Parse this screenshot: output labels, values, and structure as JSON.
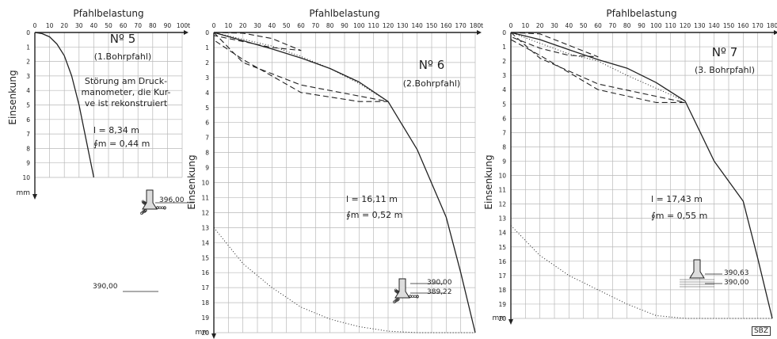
{
  "chart_data": [
    {
      "type": "line",
      "title": "Pfahlbelastung",
      "xlabel": "Pfahlbelastung",
      "ylabel": "Einsenkung",
      "x_unit": "t",
      "y_unit": "mm",
      "xlim": [
        0,
        100
      ],
      "ylim": [
        0,
        10
      ],
      "x_ticks": [
        0,
        10,
        20,
        30,
        40,
        50,
        60,
        70,
        80,
        90,
        100
      ],
      "y_ticks": [
        0,
        1,
        2,
        3,
        4,
        5,
        6,
        7,
        8,
        9,
        10
      ],
      "series": [
        {
          "style": "solid",
          "x": [
            0,
            5,
            10,
            15,
            20,
            25,
            30,
            35,
            40
          ],
          "y": [
            0,
            0.08,
            0.3,
            0.8,
            1.6,
            3.0,
            5.0,
            7.5,
            10.0
          ]
        }
      ],
      "annotations": {
        "pile_no": "Nº 5",
        "pile_type": "(1.Bohrpfahl)",
        "note": [
          "Störung am Druck-",
          "manometer, die Kur-",
          "ve ist rekonstruiert"
        ],
        "length": "l = 8,34 m",
        "diameter": "∮m = 0,44 m",
        "level_top": "396,00",
        "level_bottom": "390,00"
      }
    },
    {
      "type": "line",
      "title": "Pfahlbelastung",
      "xlabel": "Pfahlbelastung",
      "ylabel": "Einsenkung",
      "x_unit": "t",
      "y_unit": "mm",
      "xlim": [
        0,
        180
      ],
      "ylim": [
        0,
        20
      ],
      "x_ticks": [
        0,
        10,
        20,
        30,
        40,
        50,
        60,
        70,
        80,
        90,
        100,
        110,
        120,
        130,
        140,
        150,
        160,
        170,
        180
      ],
      "y_ticks": [
        0,
        1,
        2,
        3,
        4,
        5,
        6,
        7,
        8,
        9,
        10,
        11,
        12,
        13,
        14,
        15,
        16,
        17,
        18,
        19,
        20
      ],
      "series": [
        {
          "style": "solid",
          "x": [
            0,
            20,
            40,
            60,
            80,
            100,
            120,
            140,
            160,
            170,
            180
          ],
          "y": [
            0,
            0.55,
            1.1,
            1.7,
            2.4,
            3.3,
            4.6,
            7.8,
            12.3,
            16.0,
            20.0
          ]
        },
        {
          "style": "dashed",
          "x": [
            0,
            20,
            40,
            60,
            40,
            20,
            0
          ],
          "y": [
            0,
            0.05,
            0.4,
            1.2,
            1.0,
            0.6,
            0.2
          ]
        },
        {
          "style": "dashed",
          "x": [
            0,
            20,
            60,
            120,
            100,
            60,
            20,
            0
          ],
          "y": [
            0,
            2.0,
            3.5,
            4.6,
            4.6,
            4.0,
            1.8,
            0.5
          ]
        },
        {
          "style": "dotted",
          "x": [
            0,
            40,
            60,
            80,
            100,
            120
          ],
          "y": [
            0,
            0.9,
            1.6,
            2.4,
            3.4,
            4.6
          ]
        },
        {
          "style": "dotted",
          "x": [
            0,
            20,
            40,
            60,
            80,
            100,
            120,
            140,
            160,
            180
          ],
          "y": [
            13.0,
            15.4,
            17.0,
            18.3,
            19.1,
            19.6,
            19.9,
            20.0,
            20.0,
            20.0
          ]
        }
      ],
      "annotations": {
        "pile_no": "Nº 6",
        "pile_type": "(2.Bohrpfahl)",
        "length": "l = 16,11 m",
        "diameter": "∮m = 0,52 m",
        "level_top": "390,00",
        "level_bottom": "389,22"
      }
    },
    {
      "type": "line",
      "title": "Pfahlbelastung",
      "xlabel": "Pfahlbelastung",
      "ylabel": "Einsenkung",
      "x_unit": "t",
      "y_unit": "mm",
      "xlim": [
        0,
        180
      ],
      "ylim": [
        0,
        20
      ],
      "x_ticks": [
        0,
        10,
        20,
        30,
        40,
        50,
        60,
        70,
        80,
        90,
        100,
        110,
        120,
        130,
        140,
        150,
        160,
        170,
        180
      ],
      "y_ticks": [
        0,
        1,
        2,
        3,
        4,
        5,
        6,
        7,
        8,
        9,
        10,
        11,
        12,
        13,
        14,
        15,
        16,
        17,
        18,
        19,
        20
      ],
      "series": [
        {
          "style": "solid",
          "x": [
            0,
            20,
            40,
            60,
            80,
            100,
            120,
            140,
            160,
            170,
            180
          ],
          "y": [
            0,
            0.5,
            1.2,
            1.9,
            2.5,
            3.5,
            4.8,
            9.0,
            11.8,
            15.8,
            20.0
          ]
        },
        {
          "style": "dashed",
          "x": [
            0,
            20,
            40,
            60,
            40,
            20,
            0
          ],
          "y": [
            0,
            0.1,
            0.9,
            1.7,
            1.6,
            1.1,
            0.3
          ]
        },
        {
          "style": "dashed",
          "x": [
            0,
            20,
            60,
            120,
            100,
            60,
            20,
            0
          ],
          "y": [
            0,
            1.8,
            3.6,
            4.9,
            4.9,
            4.0,
            1.6,
            0.5
          ]
        },
        {
          "style": "dotted",
          "x": [
            0,
            40,
            60,
            80,
            100,
            120
          ],
          "y": [
            0,
            1.5,
            2.0,
            3.0,
            3.9,
            4.8
          ]
        },
        {
          "style": "dotted",
          "x": [
            0,
            20,
            40,
            60,
            80,
            100,
            120,
            140,
            160,
            180
          ],
          "y": [
            13.5,
            15.6,
            17.0,
            18.0,
            19.0,
            19.8,
            20.0,
            20.0,
            20.0,
            20.0
          ]
        }
      ],
      "annotations": {
        "pile_no": "Nº 7",
        "pile_type": "(3. Bohrpfahl)",
        "length": "l = 17,43 m",
        "diameter": "∮m = 0,55 m",
        "level_top": "390,63",
        "level_bottom": "390,00"
      }
    }
  ],
  "credit": "SBZ"
}
